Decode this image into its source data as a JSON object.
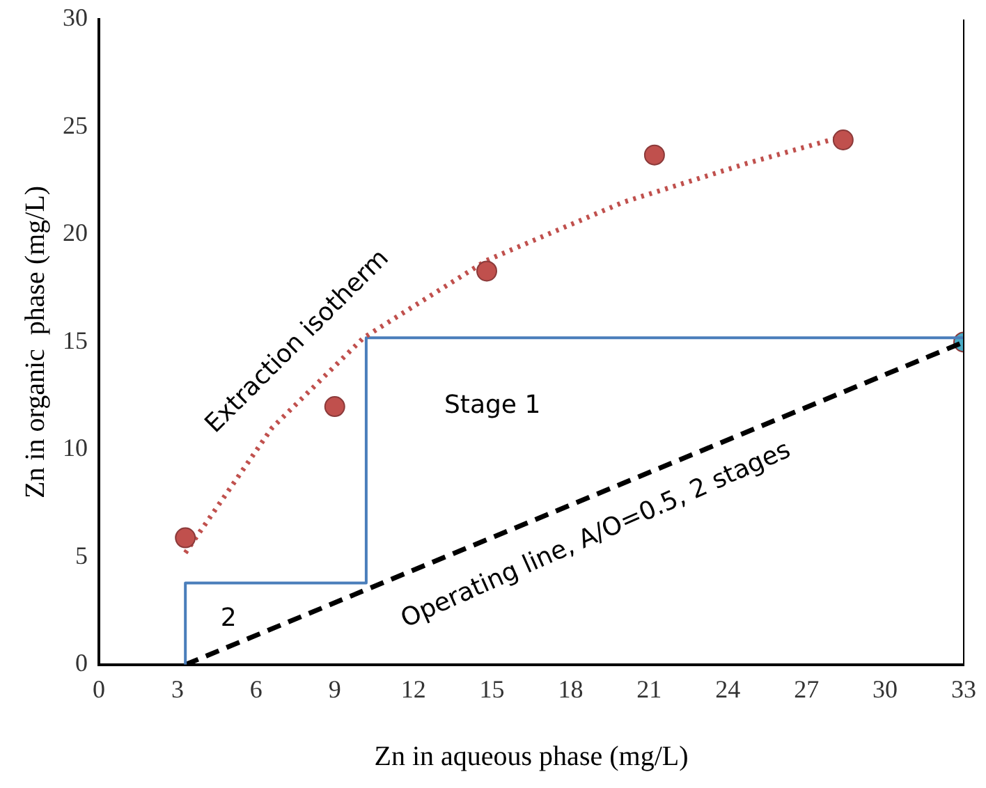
{
  "chart_data": {
    "type": "scatter",
    "xlabel": "Zn in aqueous phase (mg/L)",
    "ylabel": "Zn in organic  phase (mg/L)",
    "xlim": [
      0,
      33
    ],
    "xticks": [
      0,
      3,
      6,
      9,
      12,
      15,
      18,
      21,
      24,
      27,
      30,
      33
    ],
    "ylim": [
      0,
      30
    ],
    "yticks": [
      0,
      5,
      10,
      15,
      20,
      25,
      30
    ],
    "grid": false,
    "legend": false,
    "series": [
      {
        "color": "#c0504d",
        "marker": "circle",
        "x": [
          3.3,
          9.0,
          14.8,
          21.2,
          28.4
        ],
        "values": [
          5.9,
          12.0,
          18.3,
          23.7,
          24.4
        ]
      },
      {
        "type": "line",
        "color": "#c0504d",
        "line_style": "dotted",
        "marker": "none",
        "x": [
          3.3,
          6.6,
          10.1,
          14.8,
          20,
          24.7,
          28.5
        ],
        "values": [
          5.2,
          11,
          15.2,
          18.8,
          21.5,
          23.3,
          24.6
        ]
      },
      {
        "type": "line",
        "color": "#4a7ebb",
        "line_style": "solid",
        "marker": "none",
        "x": [
          3.3,
          3.3,
          10.2,
          10.2,
          33
        ],
        "values": [
          0,
          3.8,
          3.8,
          15.2,
          15.2
        ]
      },
      {
        "type": "line",
        "color": "#000000",
        "line_style": "dashed",
        "marker": "none",
        "x": [
          3.3,
          33
        ],
        "values": [
          0,
          15
        ]
      },
      {
        "type": "scatter",
        "color": "#4bacc6",
        "marker": "circle",
        "x": [
          33
        ],
        "values": [
          15
        ]
      }
    ],
    "ref_lines": [
      {
        "axis": "x",
        "value": 33,
        "color": "#000000",
        "line_style": "solid"
      }
    ],
    "annotations": [
      "Extraction isotherm",
      "Stage 1",
      "2",
      "Operating line, A/O=0.5, 2 stages"
    ]
  }
}
